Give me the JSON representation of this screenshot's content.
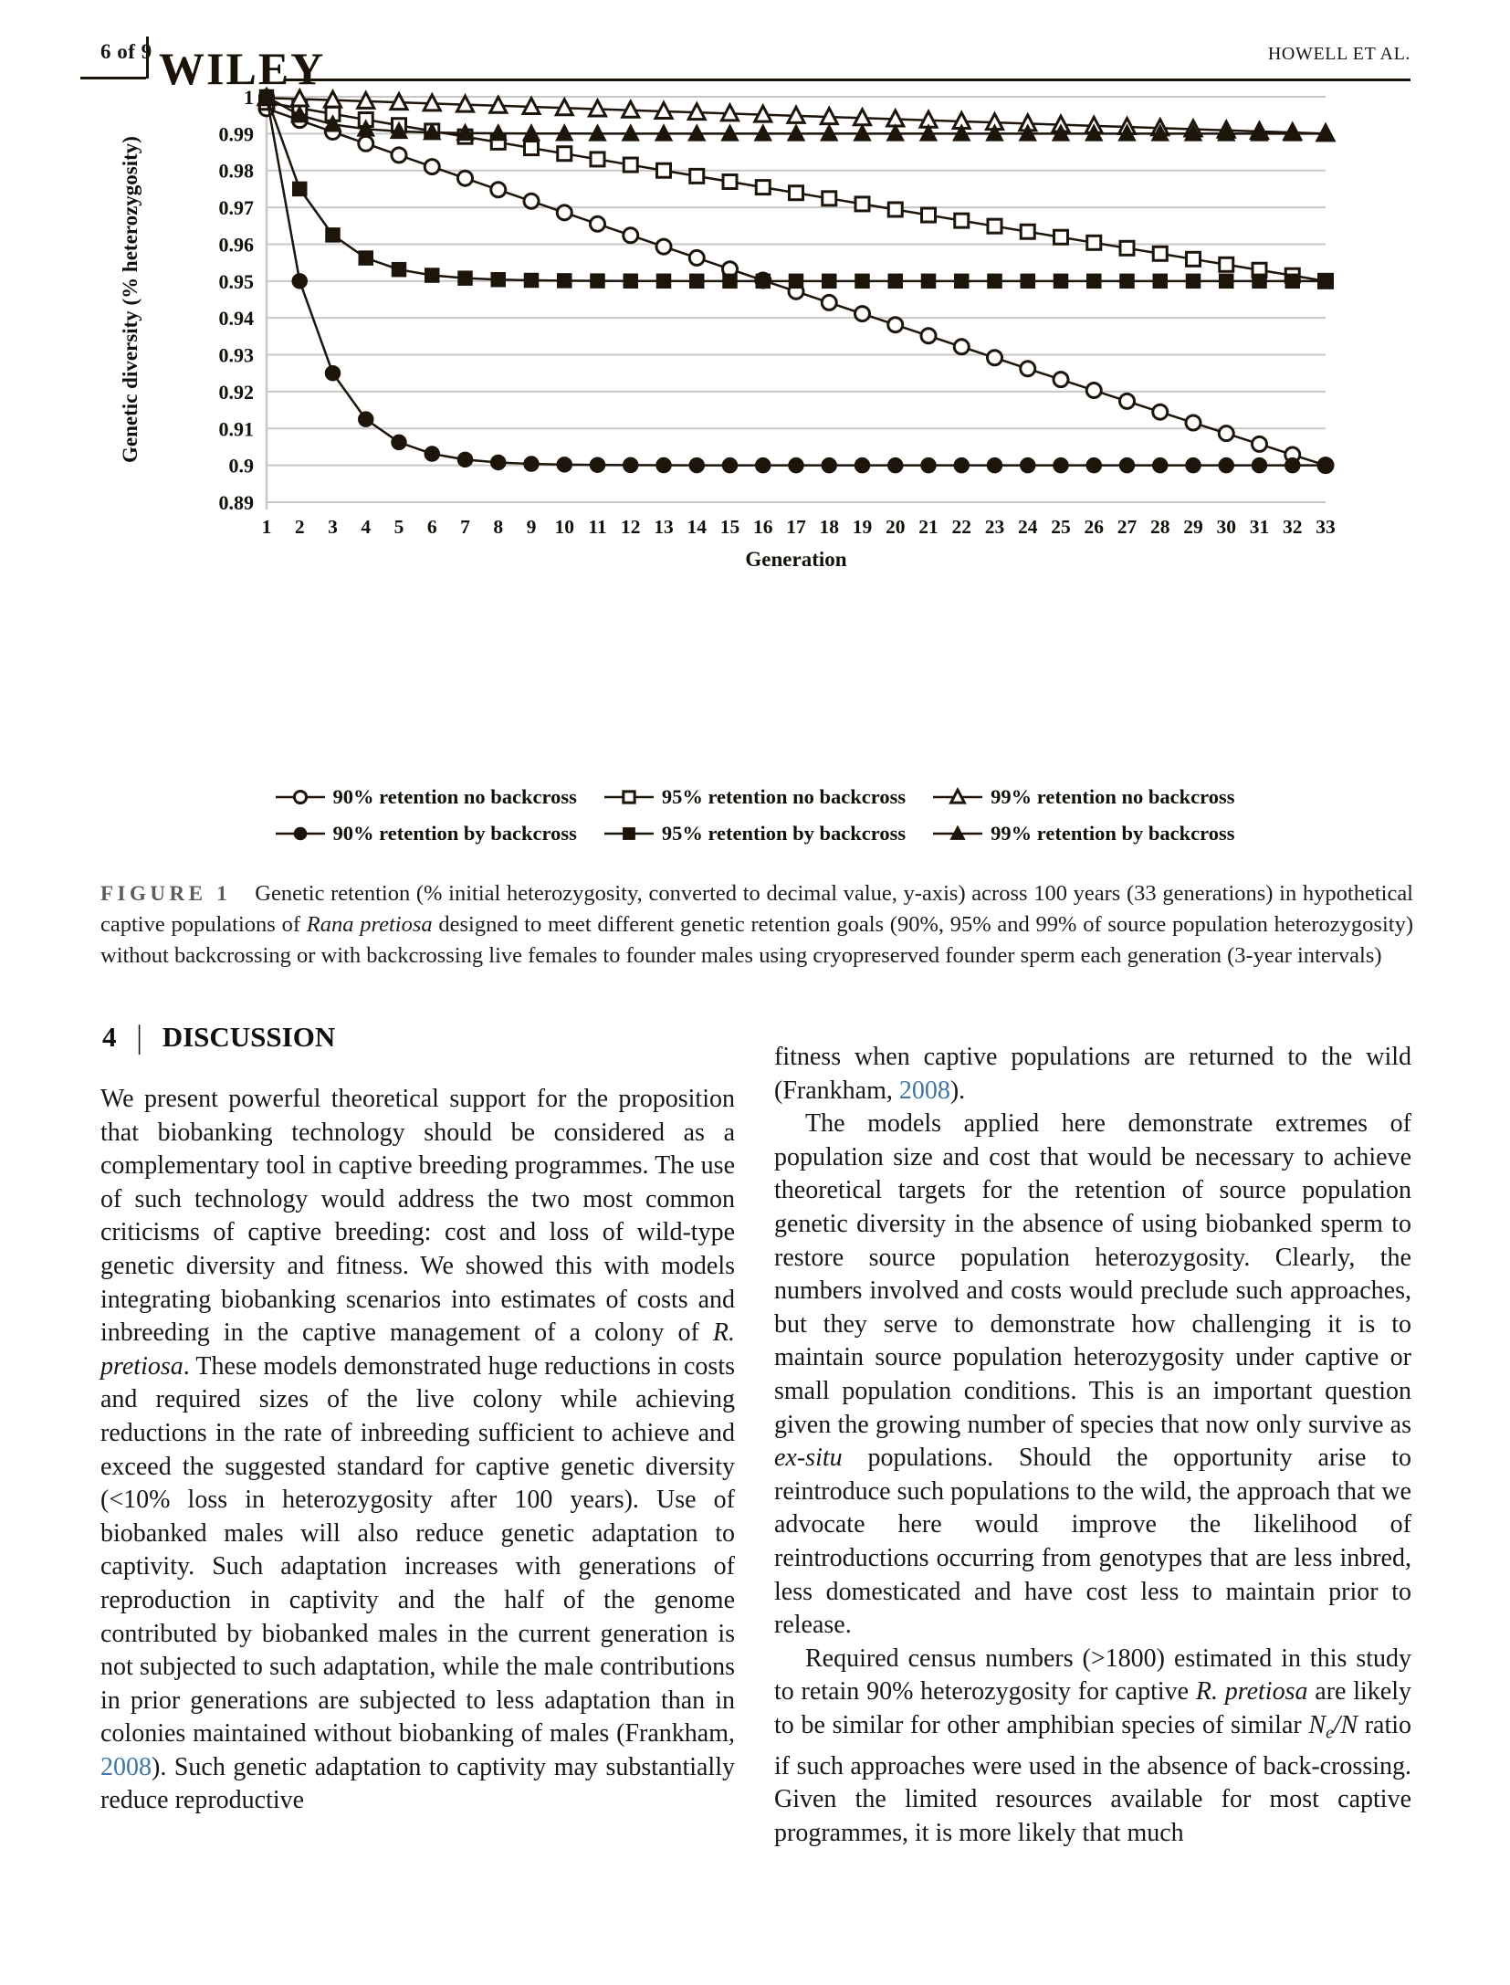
{
  "header": {
    "page_label": "6 of 9",
    "journal_logo": "WILEY",
    "running_head": "HOWELL ET AL."
  },
  "chart_data": {
    "type": "line",
    "xlabel": "Generation",
    "ylabel": "Genetic diversity (% heterozygosity)",
    "x": [
      1,
      2,
      3,
      4,
      5,
      6,
      7,
      8,
      9,
      10,
      11,
      12,
      13,
      14,
      15,
      16,
      17,
      18,
      19,
      20,
      21,
      22,
      23,
      24,
      25,
      26,
      27,
      28,
      29,
      30,
      31,
      32,
      33
    ],
    "ylim": [
      0.89,
      1.0
    ],
    "ytick_step": 0.01,
    "grid": "horizontal",
    "legend_position": "bottom",
    "series_color": "#1d140a",
    "grid_color": "#c8c8c8",
    "series": [
      {
        "name": "90% retention no backcross",
        "marker": "circle",
        "fill": "open",
        "values": [
          0.99681,
          0.99364,
          0.99047,
          0.98731,
          0.98417,
          0.98103,
          0.9779,
          0.97478,
          0.97168,
          0.96858,
          0.96549,
          0.96241,
          0.95934,
          0.95629,
          0.95324,
          0.9502,
          0.94717,
          0.94415,
          0.94114,
          0.93814,
          0.93515,
          0.93217,
          0.9292,
          0.92623,
          0.92328,
          0.92034,
          0.9174,
          0.91448,
          0.91156,
          0.90866,
          0.90576,
          0.90287,
          0.9
        ]
      },
      {
        "name": "95% retention no backcross",
        "marker": "square",
        "fill": "open",
        "values": [
          0.99845,
          0.9969,
          0.99535,
          0.9938,
          0.99226,
          0.99072,
          0.98918,
          0.98765,
          0.98611,
          0.98458,
          0.98305,
          0.98153,
          0.98,
          0.97848,
          0.97696,
          0.97545,
          0.97393,
          0.97242,
          0.97091,
          0.96941,
          0.9679,
          0.9664,
          0.9649,
          0.9634,
          0.96191,
          0.96041,
          0.95892,
          0.95744,
          0.95595,
          0.95447,
          0.95299,
          0.95151,
          0.95
        ]
      },
      {
        "name": "99% retention no backcross",
        "marker": "triangle",
        "fill": "open",
        "values": [
          0.9997,
          0.99939,
          0.99909,
          0.99878,
          0.99848,
          0.99818,
          0.99787,
          0.99757,
          0.99726,
          0.99696,
          0.99666,
          0.99635,
          0.99605,
          0.99575,
          0.99544,
          0.99514,
          0.99484,
          0.99453,
          0.99423,
          0.99393,
          0.99363,
          0.99332,
          0.99302,
          0.99272,
          0.99241,
          0.99211,
          0.99181,
          0.99151,
          0.99121,
          0.9909,
          0.9906,
          0.9903,
          0.99
        ]
      },
      {
        "name": "90% retention by backcross",
        "marker": "circle",
        "fill": "solid",
        "values": [
          1,
          0.95,
          0.925,
          0.9125,
          0.90625,
          0.90313,
          0.90156,
          0.90078,
          0.90039,
          0.9002,
          0.9001,
          0.90005,
          0.90002,
          0.90001,
          0.9,
          0.9,
          0.9,
          0.9,
          0.9,
          0.9,
          0.9,
          0.9,
          0.9,
          0.9,
          0.9,
          0.9,
          0.9,
          0.9,
          0.9,
          0.9,
          0.9,
          0.9,
          0.9
        ]
      },
      {
        "name": "95% retention by backcross",
        "marker": "square",
        "fill": "solid",
        "values": [
          1,
          0.975,
          0.9625,
          0.95625,
          0.95313,
          0.95156,
          0.95078,
          0.95039,
          0.9502,
          0.9501,
          0.95005,
          0.95002,
          0.95001,
          0.95,
          0.95,
          0.95,
          0.95,
          0.95,
          0.95,
          0.95,
          0.95,
          0.95,
          0.95,
          0.95,
          0.95,
          0.95,
          0.95,
          0.95,
          0.95,
          0.95,
          0.95,
          0.95,
          0.95
        ]
      },
      {
        "name": "99% retention by backcross",
        "marker": "triangle",
        "fill": "solid",
        "values": [
          1,
          0.995,
          0.9925,
          0.99125,
          0.99063,
          0.99031,
          0.99016,
          0.99008,
          0.99004,
          0.99002,
          0.99001,
          0.99,
          0.99,
          0.99,
          0.99,
          0.99,
          0.99,
          0.99,
          0.99,
          0.99,
          0.99,
          0.99,
          0.99,
          0.99,
          0.99,
          0.99,
          0.99,
          0.99,
          0.99,
          0.99,
          0.99,
          0.99,
          0.99
        ]
      }
    ]
  },
  "figure_caption": {
    "label": "FIGURE 1",
    "segments": [
      {
        "t": "Genetic retention (% initial heterozygosity, converted to decimal value, y-axis) across 100 years (33 generations) in hypothetical captive populations of ",
        "s": "n"
      },
      {
        "t": "Rana pretiosa",
        "s": "i"
      },
      {
        "t": " designed to meet different genetic retention goals (90%, 95% and 99% of source population heterozygosity) without backcrossing or with backcrossing live females to founder males using cryopreserved founder sperm each generation (3-year intervals)",
        "s": "n"
      }
    ]
  },
  "discussion": {
    "heading": {
      "number": "4",
      "divider": "|",
      "title": "DISCUSSION"
    },
    "left_column": {
      "paragraphs": [
        {
          "segments": [
            {
              "t": "We present powerful theoretical support for the proposition that biobanking technology should be considered as a complementary tool in captive breeding programmes. The use of such technology would address the two most common criticisms of captive breeding: cost and loss of wild-type genetic diversity and fitness. We showed this with models integrating biobanking scenarios into estimates of costs and inbreeding in the captive management of a colony of ",
              "s": "n"
            },
            {
              "t": "R. pretiosa",
              "s": "i"
            },
            {
              "t": ". These models demonstrated huge reductions in costs and required sizes of the live colony while achieving reductions in the rate of inbreeding sufficient to achieve and exceed the suggested standard for captive genetic diversity (<10% loss in heterozygosity after 100 years). Use of biobanked males will also reduce genetic adaptation to captivity. Such adaptation increases with generations of reproduction in captivity and the half of the genome contributed by biobanked males in the current generation is not subjected to such adaptation, while the male contributions in prior generations are subjected to less adaptation than in colonies maintained without biobanking of males (Frankham, ",
              "s": "n"
            },
            {
              "t": "2008",
              "s": "l"
            },
            {
              "t": "). Such genetic adaptation to captivity may substantially reduce reproductive",
              "s": "n"
            }
          ]
        }
      ]
    },
    "right_column": {
      "paragraphs": [
        {
          "segments": [
            {
              "t": "fitness when captive populations are returned to the wild (Frankham, ",
              "s": "n"
            },
            {
              "t": "2008",
              "s": "l"
            },
            {
              "t": ").",
              "s": "n"
            }
          ]
        },
        {
          "segments": [
            {
              "t": "The models applied here demonstrate extremes of population size and cost that would be necessary to achieve theoretical targets for the retention of source population genetic diversity in the absence of using biobanked sperm to restore source population heterozygosity. Clearly, the numbers involved and costs would preclude such approaches, but they serve to demonstrate how challenging it is to maintain source population heterozygosity under captive or small population conditions. This is an important question given the growing number of species that now only survive as ",
              "s": "n"
            },
            {
              "t": "ex-situ",
              "s": "i"
            },
            {
              "t": " populations. Should the opportunity arise to reintroduce such populations to the wild, the approach that we advocate here would improve the likelihood of reintroductions occurring from genotypes that are less inbred, less domesticated and have cost less to maintain prior to release.",
              "s": "n"
            }
          ]
        },
        {
          "segments": [
            {
              "t": "Required census numbers (>1800) estimated in this study to retain 90% heterozygosity for captive ",
              "s": "n"
            },
            {
              "t": "R. pretiosa",
              "s": "i"
            },
            {
              "t": " are likely to be similar for other amphibian species of similar ",
              "s": "n"
            },
            {
              "t": "N",
              "s": "i"
            },
            {
              "t": "e",
              "s": "s"
            },
            {
              "t": "/N",
              "s": "i"
            },
            {
              "t": " ratio if such approaches were used in the absence of back-crossing. Given the limited resources available for most captive programmes, it is more likely that much",
              "s": "n"
            }
          ]
        }
      ]
    }
  },
  "colors": {
    "link": "#4076a6",
    "text": "#161616",
    "caption_label": "#5c5c5c"
  }
}
